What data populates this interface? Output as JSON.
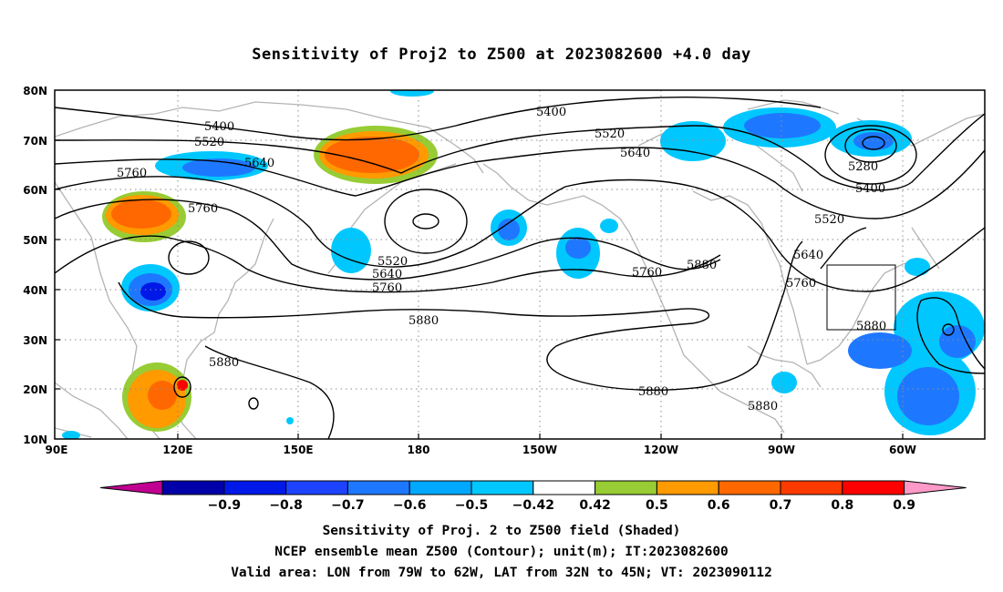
{
  "title": "Sensitivity of Proj2 to Z500 at 2023082600 +4.0 day",
  "lat_labels": [
    "80N",
    "70N",
    "60N",
    "50N",
    "40N",
    "30N",
    "20N",
    "10N"
  ],
  "lon_labels": [
    "90E",
    "120E",
    "150E",
    "180",
    "150W",
    "120W",
    "90W",
    "60W"
  ],
  "contour_labels": [
    "5400",
    "5520",
    "5640",
    "5760",
    "5760",
    "5400",
    "5520",
    "5640",
    "5520",
    "5640",
    "5760",
    "5880",
    "5880",
    "5280",
    "5400",
    "5520",
    "5640",
    "5760",
    "5760",
    "5880",
    "5880",
    "5880",
    "5880"
  ],
  "colorbar": {
    "colors": [
      "#c00090",
      "#0000a8",
      "#0018e8",
      "#1d43ff",
      "#1e78ff",
      "#00a8ff",
      "#00c8ff",
      "#ffffff",
      "#98cc34",
      "#ff9a00",
      "#ff6800",
      "#ff3a00",
      "#ff0000",
      "#ff9ac8"
    ],
    "labels": [
      "-0.9",
      "-0.8",
      "-0.7",
      "-0.6",
      "-0.5",
      "-0.42",
      "0.42",
      "0.5",
      "0.6",
      "0.7",
      "0.8",
      "0.9"
    ]
  },
  "captions": [
    "Sensitivity of Proj. 2 to Z500 field (Shaded)",
    "NCEP ensemble mean Z500 (Contour); unit(m); IT:2023082600",
    "Valid area: LON from 79W to 62W, LAT from 32N to 45N; VT: 2023090112"
  ],
  "valid_area": {
    "lon": [
      -79,
      -62
    ],
    "lat": [
      32,
      45
    ]
  }
}
